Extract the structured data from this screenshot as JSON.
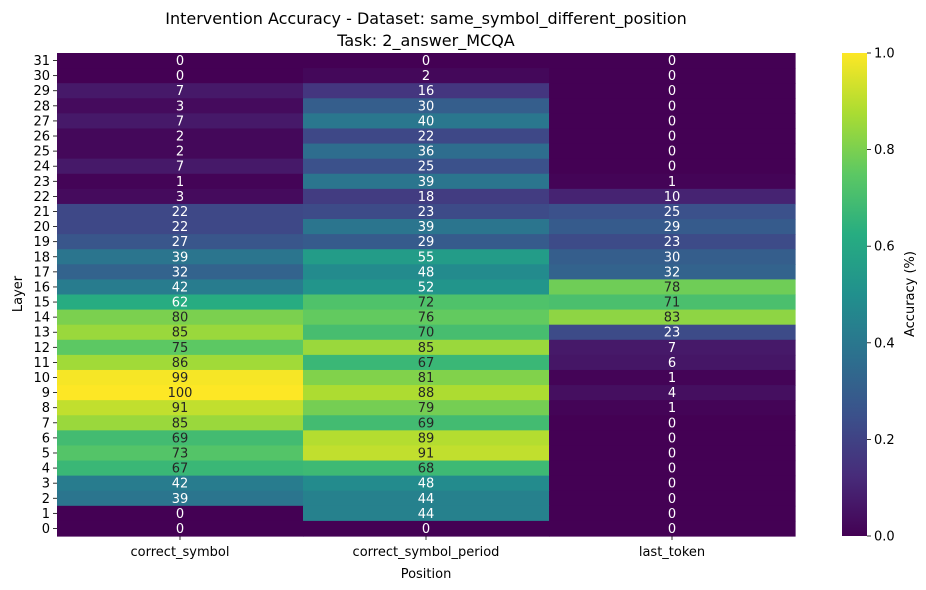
{
  "chart_data": {
    "type": "heatmap",
    "title": "Intervention Accuracy - Dataset: same_symbol_different_position",
    "subtitle": "Task: 2_answer_MCQA",
    "xlabel": "Position",
    "ylabel": "Layer",
    "columns": [
      "correct_symbol",
      "correct_symbol_period",
      "last_token"
    ],
    "layers": [
      31,
      30,
      29,
      28,
      27,
      26,
      25,
      24,
      23,
      22,
      21,
      20,
      19,
      18,
      17,
      16,
      15,
      14,
      13,
      12,
      11,
      10,
      9,
      8,
      7,
      6,
      5,
      4,
      3,
      2,
      1,
      0
    ],
    "values": [
      [
        0,
        0,
        0
      ],
      [
        0,
        2,
        0
      ],
      [
        7,
        16,
        0
      ],
      [
        3,
        30,
        0
      ],
      [
        7,
        40,
        0
      ],
      [
        2,
        22,
        0
      ],
      [
        2,
        36,
        0
      ],
      [
        7,
        25,
        0
      ],
      [
        1,
        39,
        1
      ],
      [
        3,
        18,
        10
      ],
      [
        22,
        23,
        25
      ],
      [
        22,
        39,
        29
      ],
      [
        27,
        29,
        23
      ],
      [
        39,
        55,
        30
      ],
      [
        32,
        48,
        32
      ],
      [
        42,
        52,
        78
      ],
      [
        62,
        72,
        71
      ],
      [
        80,
        76,
        83
      ],
      [
        85,
        70,
        23
      ],
      [
        75,
        85,
        7
      ],
      [
        86,
        67,
        6
      ],
      [
        99,
        81,
        1
      ],
      [
        100,
        88,
        4
      ],
      [
        91,
        79,
        1
      ],
      [
        85,
        69,
        0
      ],
      [
        69,
        89,
        0
      ],
      [
        73,
        91,
        0
      ],
      [
        67,
        68,
        0
      ],
      [
        42,
        48,
        0
      ],
      [
        39,
        44,
        0
      ],
      [
        0,
        44,
        0
      ],
      [
        0,
        0,
        0
      ]
    ],
    "colorbar": {
      "label": "Accuracy (%)",
      "range": [
        0.0,
        1.0
      ],
      "ticks": [
        "0.0",
        "0.2",
        "0.4",
        "0.6",
        "0.8",
        "1.0"
      ],
      "colormap": "viridis"
    }
  }
}
